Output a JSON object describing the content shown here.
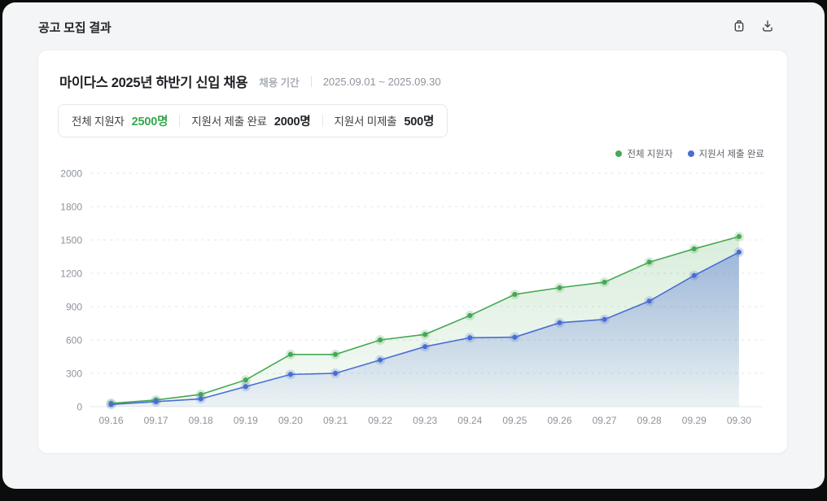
{
  "header": {
    "title": "공고 모집 결과",
    "icons": [
      "trash-icon",
      "download-icon"
    ]
  },
  "card": {
    "title": "마이다스 2025년 하반기 신입 채용",
    "period_label": "채용 기간",
    "period_value": "2025.09.01 ~ 2025.09.30",
    "stats": [
      {
        "label": "전체 지원자",
        "value": "2500명",
        "color": "#35a84e"
      },
      {
        "label": "지원서 제출 완료",
        "value": "2000명",
        "color": "#202328"
      },
      {
        "label": "지원서 미제출",
        "value": "500명",
        "color": "#202328"
      }
    ]
  },
  "legend": [
    {
      "label": "전체 지원자",
      "color": "#46a853"
    },
    {
      "label": "지원서 제출 완료",
      "color": "#4a6dd3"
    }
  ],
  "colors": {
    "page_background": "#f4f5f7",
    "card_background": "#ffffff",
    "accent_green": "#46a853",
    "accent_blue": "#4a6dd3",
    "grid_line": "#e3e6ea",
    "axis_text": "#8d939b"
  },
  "chart_data": {
    "type": "area",
    "title": "",
    "x": [
      "09.16",
      "09.17",
      "09.18",
      "09.19",
      "09.20",
      "09.21",
      "09.22",
      "09.23",
      "09.24",
      "09.25",
      "09.26",
      "09.27",
      "09.28",
      "09.29",
      "09.30"
    ],
    "series": [
      {
        "name": "전체 지원자",
        "color": "#46a853",
        "values": [
          30,
          60,
          110,
          240,
          470,
          470,
          600,
          650,
          820,
          1010,
          1070,
          1120,
          1300,
          1420,
          1530
        ]
      },
      {
        "name": "지원서 제출 완료",
        "color": "#4a6dd3",
        "values": [
          20,
          45,
          70,
          180,
          290,
          300,
          420,
          540,
          620,
          625,
          755,
          785,
          950,
          1180,
          1390
        ]
      }
    ],
    "yticks": [
      0,
      300,
      600,
      900,
      1200,
      1500,
      1800,
      2000
    ],
    "ylim": [
      0,
      2000
    ],
    "grid": "horizontal-dashed",
    "legend_position": "top-right"
  }
}
